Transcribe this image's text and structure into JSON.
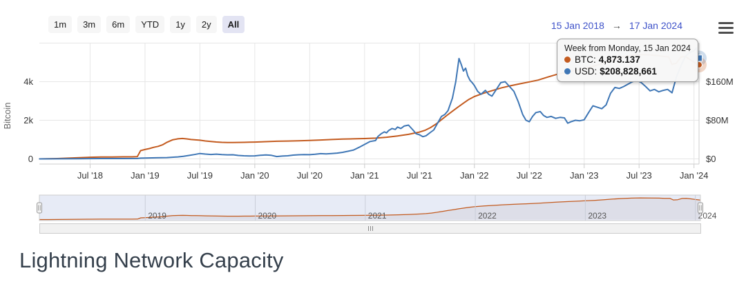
{
  "range_selector": {
    "buttons": [
      {
        "label": "1m",
        "selected": false
      },
      {
        "label": "3m",
        "selected": false
      },
      {
        "label": "6m",
        "selected": false
      },
      {
        "label": "YTD",
        "selected": false
      },
      {
        "label": "1y",
        "selected": false
      },
      {
        "label": "2y",
        "selected": false
      },
      {
        "label": "All",
        "selected": true
      }
    ]
  },
  "date_range": {
    "from": "15 Jan 2018",
    "arrow": "→",
    "to": "17 Jan 2024"
  },
  "icons": {
    "menu": "hamburger-icon"
  },
  "tooltip": {
    "header": "Week from Monday, 15 Jan 2024",
    "rows": [
      {
        "marker_color": "#c35a1e",
        "label": "BTC:",
        "value": "4,873.137"
      },
      {
        "marker_color": "#3e76b5",
        "label": "USD:",
        "value": "$208,828,661"
      }
    ]
  },
  "colors": {
    "btc_line": "#c35a1e",
    "usd_line": "#3e76b5",
    "grid": "#e6e6e6",
    "axis_line": "#cccccc",
    "tick_text": "#333333",
    "axis_title_text": "#666666",
    "nav_mask": "#e7ebf6",
    "nav_grid": "#c9cdd8",
    "nav_label": "#555555",
    "date_link": "#3e52c9"
  },
  "chart_data": {
    "type": "line",
    "title": "Lightning Network Capacity",
    "x_axis": {
      "range_label": [
        "15 Jan 2018",
        "17 Jan 2024"
      ],
      "domain_years": [
        2018.038,
        2024.046
      ],
      "tick_years": [
        2018.5,
        2019,
        2019.5,
        2020,
        2020.5,
        2021,
        2021.5,
        2022,
        2022.5,
        2023,
        2023.5,
        2024
      ],
      "tick_labels": [
        "Jul '18",
        "Jan '19",
        "Jul '19",
        "Jan '20",
        "Jul '20",
        "Jan '21",
        "Jul '21",
        "Jan '22",
        "Jul '22",
        "Jan '23",
        "Jul '23",
        "Jan '24"
      ]
    },
    "y_left": {
      "title": "Bitcoin",
      "tick_values": [
        0,
        2000,
        4000
      ],
      "tick_labels": [
        "0",
        "2k",
        "4k"
      ],
      "max": 6000
    },
    "y_right": {
      "tick_values_musd": [
        0,
        80,
        160
      ],
      "tick_labels": [
        "$0",
        "$80M",
        "$160M"
      ],
      "max_musd": 240
    },
    "hovered_point": {
      "label": "Week from Monday, 15 Jan 2024",
      "btc": 4873.137,
      "usd": 208828661
    },
    "series": [
      {
        "name": "BTC",
        "axis": "left",
        "color": "#c35a1e",
        "points": [
          [
            2018.04,
            1
          ],
          [
            2018.12,
            8
          ],
          [
            2018.2,
            18
          ],
          [
            2018.3,
            38
          ],
          [
            2018.4,
            62
          ],
          [
            2018.5,
            85
          ],
          [
            2018.6,
            96
          ],
          [
            2018.7,
            101
          ],
          [
            2018.8,
            106
          ],
          [
            2018.88,
            108
          ],
          [
            2018.93,
            118
          ],
          [
            2018.96,
            430
          ],
          [
            2019.0,
            487
          ],
          [
            2019.04,
            535
          ],
          [
            2019.08,
            600
          ],
          [
            2019.12,
            650
          ],
          [
            2019.16,
            730
          ],
          [
            2019.2,
            860
          ],
          [
            2019.25,
            985
          ],
          [
            2019.3,
            1040
          ],
          [
            2019.34,
            1056
          ],
          [
            2019.38,
            1035
          ],
          [
            2019.42,
            1005
          ],
          [
            2019.46,
            985
          ],
          [
            2019.5,
            968
          ],
          [
            2019.55,
            930
          ],
          [
            2019.6,
            900
          ],
          [
            2019.65,
            875
          ],
          [
            2019.7,
            858
          ],
          [
            2019.75,
            848
          ],
          [
            2019.8,
            845
          ],
          [
            2019.85,
            852
          ],
          [
            2019.9,
            856
          ],
          [
            2019.95,
            864
          ],
          [
            2020.0,
            872
          ],
          [
            2020.1,
            894
          ],
          [
            2020.2,
            914
          ],
          [
            2020.3,
            926
          ],
          [
            2020.4,
            940
          ],
          [
            2020.5,
            957
          ],
          [
            2020.6,
            980
          ],
          [
            2020.7,
            1004
          ],
          [
            2020.8,
            1024
          ],
          [
            2020.9,
            1040
          ],
          [
            2021.0,
            1052
          ],
          [
            2021.1,
            1076
          ],
          [
            2021.2,
            1122
          ],
          [
            2021.3,
            1190
          ],
          [
            2021.4,
            1272
          ],
          [
            2021.5,
            1390
          ],
          [
            2021.55,
            1478
          ],
          [
            2021.6,
            1622
          ],
          [
            2021.65,
            1804
          ],
          [
            2021.7,
            2030
          ],
          [
            2021.75,
            2252
          ],
          [
            2021.8,
            2470
          ],
          [
            2021.85,
            2682
          ],
          [
            2021.9,
            2884
          ],
          [
            2021.95,
            3082
          ],
          [
            2022.0,
            3232
          ],
          [
            2022.08,
            3398
          ],
          [
            2022.16,
            3532
          ],
          [
            2022.25,
            3684
          ],
          [
            2022.33,
            3790
          ],
          [
            2022.42,
            3896
          ],
          [
            2022.5,
            3988
          ],
          [
            2022.58,
            4082
          ],
          [
            2022.67,
            4242
          ],
          [
            2022.75,
            4380
          ],
          [
            2022.83,
            4478
          ],
          [
            2022.92,
            4580
          ],
          [
            2023.0,
            4682
          ],
          [
            2023.08,
            4788
          ],
          [
            2023.17,
            4948
          ],
          [
            2023.25,
            5118
          ],
          [
            2023.33,
            5258
          ],
          [
            2023.42,
            5360
          ],
          [
            2023.5,
            5404
          ],
          [
            2023.58,
            5392
          ],
          [
            2023.67,
            5352
          ],
          [
            2023.72,
            5312
          ],
          [
            2023.77,
            5282
          ],
          [
            2023.8,
            4892
          ],
          [
            2023.84,
            4962
          ],
          [
            2023.88,
            5278
          ],
          [
            2023.92,
            5302
          ],
          [
            2023.96,
            5162
          ],
          [
            2024.0,
            5012
          ],
          [
            2024.046,
            4873.137
          ]
        ]
      },
      {
        "name": "USD",
        "axis": "right",
        "unit": "million USD",
        "color": "#3e76b5",
        "points": [
          [
            2018.04,
            0.01
          ],
          [
            2018.2,
            0.15
          ],
          [
            2018.4,
            0.45
          ],
          [
            2018.6,
            0.65
          ],
          [
            2018.8,
            0.7
          ],
          [
            2018.93,
            0.8
          ],
          [
            2018.96,
            1.5
          ],
          [
            2019.0,
            1.8
          ],
          [
            2019.1,
            2.3
          ],
          [
            2019.2,
            2.7
          ],
          [
            2019.3,
            4.2
          ],
          [
            2019.35,
            5.4
          ],
          [
            2019.4,
            7.2
          ],
          [
            2019.45,
            9.0
          ],
          [
            2019.5,
            11.2
          ],
          [
            2019.55,
            10.0
          ],
          [
            2019.6,
            9.2
          ],
          [
            2019.65,
            9.8
          ],
          [
            2019.7,
            8.8
          ],
          [
            2019.75,
            8.4
          ],
          [
            2019.8,
            8.6
          ],
          [
            2019.85,
            7.2
          ],
          [
            2019.9,
            6.4
          ],
          [
            2019.95,
            6.2
          ],
          [
            2020.0,
            6.3
          ],
          [
            2020.05,
            7.6
          ],
          [
            2020.1,
            8.2
          ],
          [
            2020.15,
            7.4
          ],
          [
            2020.2,
            4.9
          ],
          [
            2020.25,
            5.8
          ],
          [
            2020.3,
            6.4
          ],
          [
            2020.35,
            7.9
          ],
          [
            2020.4,
            8.6
          ],
          [
            2020.45,
            8.8
          ],
          [
            2020.5,
            8.7
          ],
          [
            2020.55,
            9.6
          ],
          [
            2020.6,
            10.8
          ],
          [
            2020.65,
            10.4
          ],
          [
            2020.7,
            11.2
          ],
          [
            2020.75,
            12.0
          ],
          [
            2020.8,
            13.6
          ],
          [
            2020.85,
            15.8
          ],
          [
            2020.9,
            18.5
          ],
          [
            2020.95,
            24
          ],
          [
            2021.0,
            30
          ],
          [
            2021.05,
            36
          ],
          [
            2021.1,
            38
          ],
          [
            2021.12,
            46
          ],
          [
            2021.15,
            52
          ],
          [
            2021.18,
            56
          ],
          [
            2021.2,
            54
          ],
          [
            2021.22,
            59
          ],
          [
            2021.25,
            63
          ],
          [
            2021.28,
            61
          ],
          [
            2021.3,
            66
          ],
          [
            2021.33,
            63
          ],
          [
            2021.36,
            68
          ],
          [
            2021.4,
            70
          ],
          [
            2021.44,
            60
          ],
          [
            2021.47,
            52
          ],
          [
            2021.5,
            50
          ],
          [
            2021.53,
            46
          ],
          [
            2021.56,
            48
          ],
          [
            2021.6,
            55
          ],
          [
            2021.63,
            60
          ],
          [
            2021.66,
            72
          ],
          [
            2021.7,
            88
          ],
          [
            2021.73,
            92
          ],
          [
            2021.76,
            100
          ],
          [
            2021.8,
            126
          ],
          [
            2021.83,
            160
          ],
          [
            2021.86,
            208
          ],
          [
            2021.88,
            196
          ],
          [
            2021.9,
            182
          ],
          [
            2021.92,
            188
          ],
          [
            2021.94,
            172
          ],
          [
            2021.96,
            163
          ],
          [
            2021.98,
            158
          ],
          [
            2022.0,
            152
          ],
          [
            2022.03,
            140
          ],
          [
            2022.06,
            134
          ],
          [
            2022.1,
            142
          ],
          [
            2022.13,
            134
          ],
          [
            2022.16,
            130
          ],
          [
            2022.2,
            144
          ],
          [
            2022.24,
            158
          ],
          [
            2022.28,
            160
          ],
          [
            2022.32,
            150
          ],
          [
            2022.36,
            140
          ],
          [
            2022.4,
            118
          ],
          [
            2022.44,
            92
          ],
          [
            2022.47,
            80
          ],
          [
            2022.5,
            77
          ],
          [
            2022.53,
            88
          ],
          [
            2022.56,
            96
          ],
          [
            2022.6,
            98
          ],
          [
            2022.63,
            90
          ],
          [
            2022.66,
            86
          ],
          [
            2022.7,
            88
          ],
          [
            2022.74,
            84
          ],
          [
            2022.78,
            86
          ],
          [
            2022.82,
            85
          ],
          [
            2022.85,
            74
          ],
          [
            2022.88,
            77
          ],
          [
            2022.92,
            80
          ],
          [
            2022.96,
            79
          ],
          [
            2023.0,
            81
          ],
          [
            2023.04,
            96
          ],
          [
            2023.08,
            110
          ],
          [
            2023.12,
            107
          ],
          [
            2023.16,
            104
          ],
          [
            2023.2,
            112
          ],
          [
            2023.24,
            136
          ],
          [
            2023.28,
            148
          ],
          [
            2023.32,
            146
          ],
          [
            2023.36,
            150
          ],
          [
            2023.4,
            155
          ],
          [
            2023.44,
            160
          ],
          [
            2023.48,
            163
          ],
          [
            2023.52,
            158
          ],
          [
            2023.56,
            150
          ],
          [
            2023.6,
            141
          ],
          [
            2023.64,
            144
          ],
          [
            2023.68,
            139
          ],
          [
            2023.72,
            142
          ],
          [
            2023.76,
            144
          ],
          [
            2023.8,
            137
          ],
          [
            2023.84,
            170
          ],
          [
            2023.88,
            192
          ],
          [
            2023.92,
            212
          ],
          [
            2023.96,
            220
          ],
          [
            2024.0,
            224
          ],
          [
            2024.02,
            230
          ],
          [
            2024.046,
            208.83
          ]
        ]
      }
    ]
  },
  "navigator": {
    "year_values": [
      2019,
      2020,
      2021,
      2022,
      2023,
      2024
    ],
    "year_labels": [
      "2019",
      "2020",
      "2021",
      "2022",
      "2023",
      "2024"
    ]
  },
  "scrollbar": {
    "grip": "III"
  }
}
